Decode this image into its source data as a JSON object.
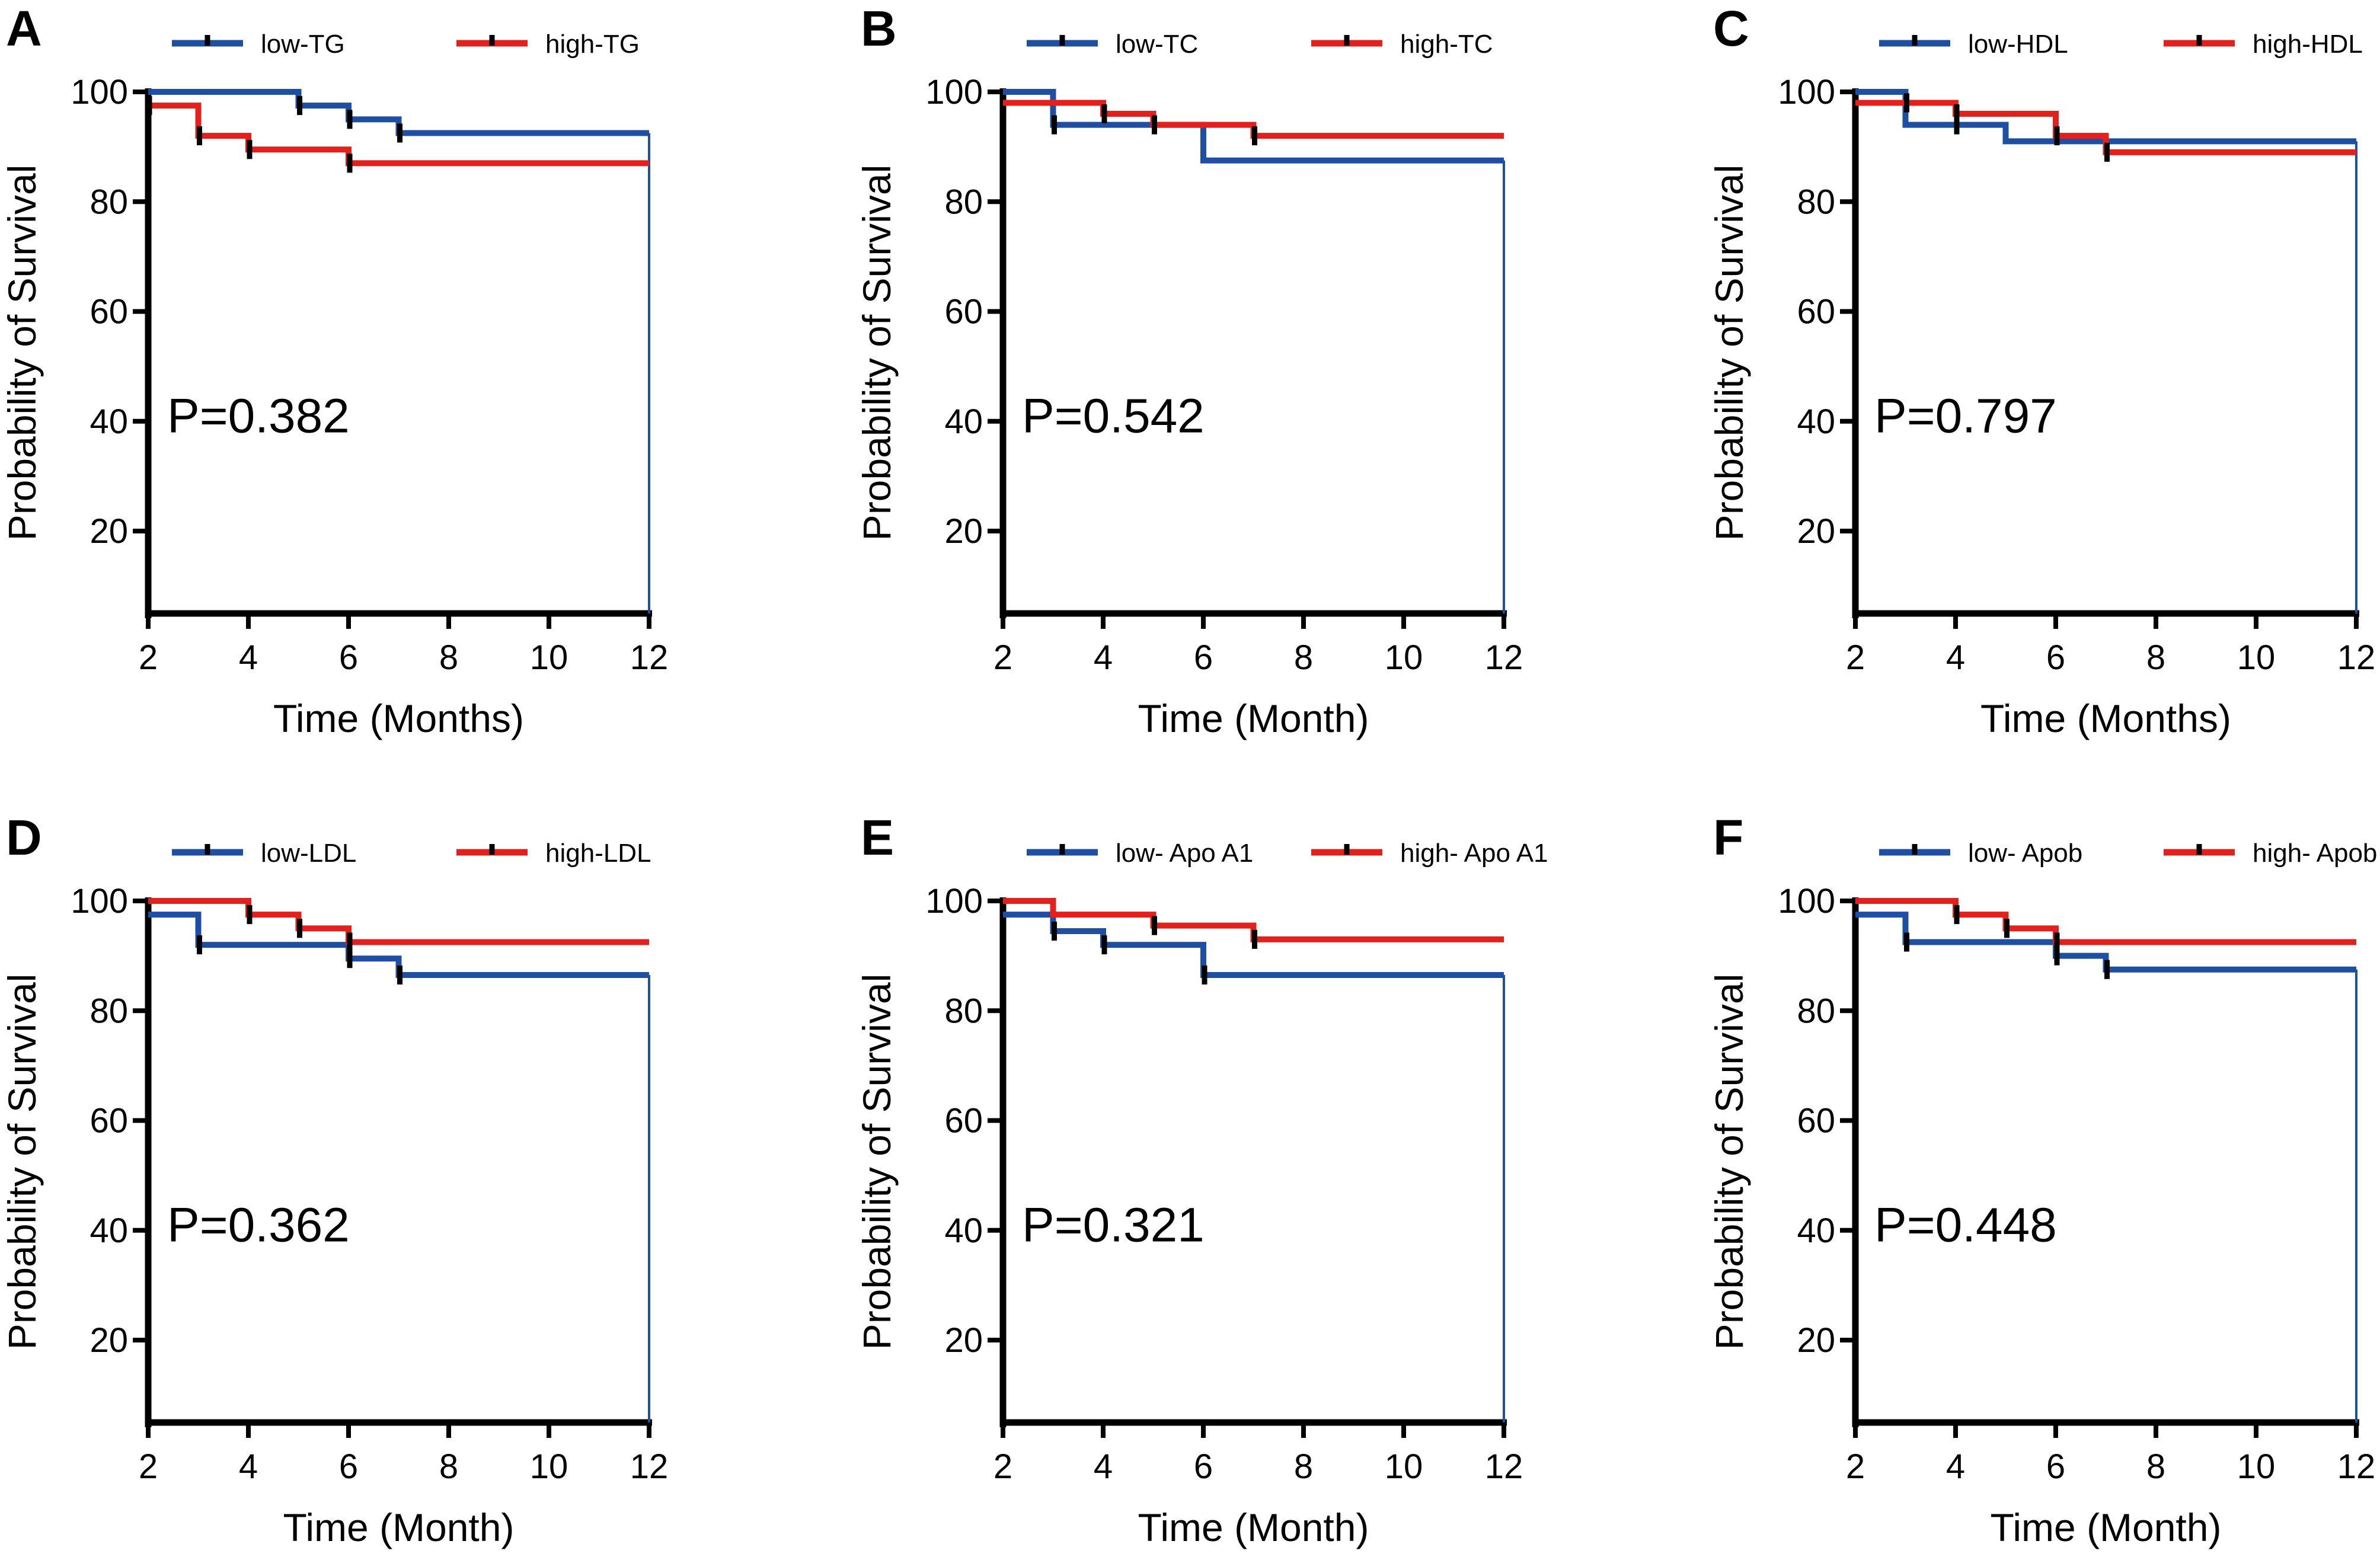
{
  "figure": {
    "description_free": true,
    "colors": {
      "low": "#1f4fa3",
      "high": "#e4201d",
      "axis": "#000000"
    }
  },
  "chart_data": [
    {
      "type": "line",
      "panel": "A",
      "title": "",
      "xlabel": "Time (Months)",
      "ylabel": "Probability of Survival",
      "xlim": [
        2,
        12
      ],
      "ylim": [
        5,
        100
      ],
      "xticks": [
        2,
        4,
        6,
        8,
        10,
        12
      ],
      "yticks": [
        20,
        40,
        60,
        80,
        100
      ],
      "p_value": "P=0.382",
      "series": [
        {
          "name": "low-TG",
          "color": "#1f4fa3",
          "steps": [
            [
              2,
              100
            ],
            [
              5,
              97.5
            ],
            [
              6,
              95
            ],
            [
              7,
              92.5
            ],
            [
              12,
              92.5
            ]
          ],
          "censored": [
            5,
            6,
            7
          ],
          "drop_at_end": true
        },
        {
          "name": "high-TG",
          "color": "#e4201d",
          "steps": [
            [
              2,
              97.5
            ],
            [
              3,
              92
            ],
            [
              4,
              89.5
            ],
            [
              6,
              87
            ],
            [
              12,
              87
            ]
          ],
          "censored": [
            2,
            3,
            4,
            6
          ],
          "drop_at_end": false
        }
      ]
    },
    {
      "type": "line",
      "panel": "B",
      "title": "",
      "xlabel": "Time (Month)",
      "ylabel": "Probability of Survival",
      "xlim": [
        2,
        12
      ],
      "ylim": [
        5,
        100
      ],
      "xticks": [
        2,
        4,
        6,
        8,
        10,
        12
      ],
      "yticks": [
        20,
        40,
        60,
        80,
        100
      ],
      "p_value": "P=0.542",
      "series": [
        {
          "name": "low-TC",
          "color": "#1f4fa3",
          "steps": [
            [
              2,
              100
            ],
            [
              3,
              94
            ],
            [
              6,
              87.5
            ],
            [
              12,
              87.5
            ]
          ],
          "censored": [
            3
          ],
          "drop_at_end": true
        },
        {
          "name": "high-TC",
          "color": "#e4201d",
          "steps": [
            [
              2,
              98
            ],
            [
              4,
              96
            ],
            [
              5,
              94
            ],
            [
              7,
              92
            ],
            [
              12,
              92
            ]
          ],
          "censored": [
            4,
            5,
            7
          ],
          "drop_at_end": false
        }
      ]
    },
    {
      "type": "line",
      "panel": "C",
      "title": "",
      "xlabel": "Time (Months)",
      "ylabel": "Probability of Survival",
      "xlim": [
        2,
        12
      ],
      "ylim": [
        5,
        100
      ],
      "xticks": [
        2,
        4,
        6,
        8,
        10,
        12
      ],
      "yticks": [
        20,
        40,
        60,
        80,
        100
      ],
      "p_value": "P=0.797",
      "series": [
        {
          "name": "low-HDL",
          "color": "#1f4fa3",
          "steps": [
            [
              2,
              100
            ],
            [
              3,
              94
            ],
            [
              5,
              91
            ],
            [
              12,
              91
            ]
          ],
          "censored": [
            4
          ],
          "drop_at_end": true
        },
        {
          "name": "high-HDL",
          "color": "#e4201d",
          "steps": [
            [
              2,
              98
            ],
            [
              4,
              96
            ],
            [
              6,
              92
            ],
            [
              7,
              89
            ],
            [
              12,
              89
            ]
          ],
          "censored": [
            3,
            4,
            6,
            7
          ],
          "drop_at_end": false
        }
      ]
    },
    {
      "type": "line",
      "panel": "D",
      "title": "",
      "xlabel": "Time (Month)",
      "ylabel": "Probability of Survival",
      "xlim": [
        2,
        12
      ],
      "ylim": [
        5,
        100
      ],
      "xticks": [
        2,
        4,
        6,
        8,
        10,
        12
      ],
      "yticks": [
        20,
        40,
        60,
        80,
        100
      ],
      "p_value": "P=0.362",
      "series": [
        {
          "name": "low-LDL",
          "color": "#1f4fa3",
          "steps": [
            [
              2,
              97.5
            ],
            [
              3,
              92
            ],
            [
              6,
              89.5
            ],
            [
              7,
              86.5
            ],
            [
              12,
              86.5
            ]
          ],
          "censored": [
            3,
            6,
            7
          ],
          "drop_at_end": true
        },
        {
          "name": "high-LDL",
          "color": "#e4201d",
          "steps": [
            [
              2,
              100
            ],
            [
              4,
              97.5
            ],
            [
              5,
              95
            ],
            [
              6,
              92.5
            ],
            [
              12,
              92.5
            ]
          ],
          "censored": [
            4,
            5,
            6
          ],
          "drop_at_end": false
        }
      ]
    },
    {
      "type": "line",
      "panel": "E",
      "title": "",
      "xlabel": "Time (Month)",
      "ylabel": "Probability of Survival",
      "xlim": [
        2,
        12
      ],
      "ylim": [
        5,
        100
      ],
      "xticks": [
        2,
        4,
        6,
        8,
        10,
        12
      ],
      "yticks": [
        20,
        40,
        60,
        80,
        100
      ],
      "p_value": "P=0.321",
      "series": [
        {
          "name": "low- Apo A1",
          "color": "#1f4fa3",
          "steps": [
            [
              2,
              97.5
            ],
            [
              3,
              94.5
            ],
            [
              4,
              92
            ],
            [
              6,
              86.5
            ],
            [
              12,
              86.5
            ]
          ],
          "censored": [
            3,
            4,
            6
          ],
          "drop_at_end": true
        },
        {
          "name": "high- Apo A1",
          "color": "#e4201d",
          "steps": [
            [
              2,
              100
            ],
            [
              3,
              97.5
            ],
            [
              5,
              95.5
            ],
            [
              7,
              93
            ],
            [
              12,
              93
            ]
          ],
          "censored": [
            5,
            7
          ],
          "drop_at_end": false
        }
      ]
    },
    {
      "type": "line",
      "panel": "F",
      "title": "",
      "xlabel": "Time (Month)",
      "ylabel": "Probability of Survival",
      "xlim": [
        2,
        12
      ],
      "ylim": [
        5,
        100
      ],
      "xticks": [
        2,
        4,
        6,
        8,
        10,
        12
      ],
      "yticks": [
        20,
        40,
        60,
        80,
        100
      ],
      "p_value": "P=0.448",
      "series": [
        {
          "name": "low- Apob",
          "color": "#1f4fa3",
          "steps": [
            [
              2,
              97.5
            ],
            [
              3,
              92.5
            ],
            [
              6,
              90
            ],
            [
              7,
              87.5
            ],
            [
              12,
              87.5
            ]
          ],
          "censored": [
            3,
            6,
            7
          ],
          "drop_at_end": true
        },
        {
          "name": "high- Apob",
          "color": "#e4201d",
          "steps": [
            [
              2,
              100
            ],
            [
              4,
              97.5
            ],
            [
              5,
              95
            ],
            [
              6,
              92.5
            ],
            [
              12,
              92.5
            ]
          ],
          "censored": [
            4,
            5,
            6
          ],
          "drop_at_end": false
        }
      ]
    }
  ]
}
